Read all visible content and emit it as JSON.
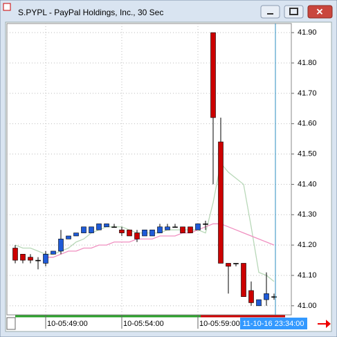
{
  "chart_data": {
    "type": "candlestick",
    "title": "S.PYPL - PayPal Holdings, Inc., 30 Sec",
    "categories": [
      null,
      null,
      null,
      null,
      "10-05:49:00",
      null,
      null,
      null,
      null,
      null,
      null,
      null,
      null,
      null,
      "10-05:54:00",
      null,
      null,
      null,
      null,
      null,
      null,
      null,
      null,
      null,
      "10-05:59:00",
      null,
      null,
      null,
      null,
      null,
      null,
      null,
      null,
      null,
      null
    ],
    "open": [
      41.19,
      41.17,
      41.16,
      41.15,
      41.14,
      41.17,
      41.18,
      41.22,
      41.23,
      41.24,
      41.24,
      41.25,
      41.26,
      41.26,
      41.25,
      41.25,
      41.24,
      41.23,
      41.23,
      41.24,
      41.25,
      41.26,
      41.26,
      41.26,
      41.25,
      41.27,
      41.9,
      41.54,
      41.14,
      41.14,
      41.14,
      41.05,
      41.0,
      41.02,
      41.03
    ],
    "high": [
      41.2,
      41.17,
      41.17,
      41.16,
      41.18,
      41.18,
      41.25,
      41.23,
      41.24,
      41.26,
      41.26,
      41.27,
      41.27,
      41.27,
      41.26,
      41.25,
      41.25,
      41.25,
      41.25,
      41.27,
      41.27,
      41.27,
      41.26,
      41.26,
      41.27,
      41.28,
      41.9,
      41.62,
      41.14,
      41.14,
      41.14,
      41.08,
      41.02,
      41.11,
      41.04
    ],
    "low": [
      41.14,
      41.14,
      41.14,
      41.12,
      41.13,
      41.17,
      41.17,
      41.22,
      41.23,
      41.24,
      41.24,
      41.25,
      41.26,
      41.26,
      41.23,
      41.23,
      41.21,
      41.23,
      41.23,
      41.24,
      41.25,
      41.26,
      41.24,
      41.24,
      41.25,
      41.25,
      41.4,
      41.14,
      41.04,
      41.13,
      41.03,
      41.0,
      41.0,
      41.0,
      41.02
    ],
    "close": [
      41.15,
      41.15,
      41.15,
      41.15,
      41.17,
      41.18,
      41.22,
      41.23,
      41.24,
      41.26,
      41.26,
      41.27,
      41.27,
      41.26,
      41.24,
      41.23,
      41.22,
      41.25,
      41.25,
      41.26,
      41.26,
      41.26,
      41.24,
      41.24,
      41.27,
      41.27,
      41.62,
      41.14,
      41.13,
      41.14,
      41.03,
      41.01,
      41.02,
      41.04,
      41.03
    ],
    "up_color": "#1f5bd8",
    "down_color": "#cc0000",
    "doji_color": "#000000",
    "series": [
      {
        "color": "#b8d8b8",
        "values": [
          41.2,
          41.19,
          41.19,
          41.18,
          41.17,
          41.17,
          41.18,
          41.19,
          41.21,
          41.22,
          41.24,
          41.25,
          41.26,
          41.26,
          41.26,
          41.25,
          41.24,
          41.24,
          41.24,
          41.24,
          41.25,
          41.25,
          41.25,
          41.25,
          41.25,
          41.24,
          41.34,
          41.47,
          41.44,
          41.42,
          41.4,
          41.26,
          41.11,
          41.1,
          41.08
        ]
      },
      {
        "color": "#f08fc0",
        "values": [
          null,
          null,
          null,
          null,
          41.16,
          41.16,
          41.17,
          41.18,
          41.18,
          41.19,
          41.19,
          41.2,
          41.2,
          41.21,
          41.21,
          41.21,
          41.22,
          41.22,
          41.22,
          41.23,
          41.23,
          41.23,
          41.24,
          41.24,
          41.25,
          41.26,
          41.27,
          41.27,
          41.26,
          41.25,
          41.24,
          41.23,
          41.22,
          41.21,
          41.2
        ]
      }
    ],
    "ylim": [
      40.97,
      41.93
    ],
    "yticks": [
      {
        "value": 41.0,
        "label": "41.00"
      },
      {
        "value": 41.1,
        "label": "41.10"
      },
      {
        "value": 41.2,
        "label": "41.20"
      },
      {
        "value": 41.3,
        "label": "41.30"
      },
      {
        "value": 41.4,
        "label": "41.40"
      },
      {
        "value": 41.5,
        "label": "41.50"
      },
      {
        "value": 41.6,
        "label": "41.60"
      },
      {
        "value": 41.7,
        "label": "41.70"
      },
      {
        "value": 41.8,
        "label": "41.80"
      },
      {
        "value": 41.9,
        "label": "41.90"
      }
    ],
    "grid": true,
    "cursor_label": "11-10-16 23:34:00"
  }
}
